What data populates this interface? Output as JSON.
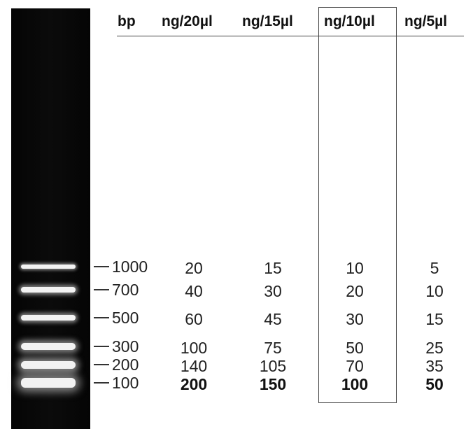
{
  "headers": {
    "bp": "bp",
    "columns": [
      "ng/20µl",
      "ng/15µl",
      "ng/10µl",
      "ng/5µl"
    ]
  },
  "rows": [
    {
      "bp": "1000",
      "values": [
        "20",
        "15",
        "10",
        "5"
      ]
    },
    {
      "bp": "700",
      "values": [
        "40",
        "30",
        "20",
        "10"
      ]
    },
    {
      "bp": "500",
      "values": [
        "60",
        "45",
        "30",
        "15"
      ]
    },
    {
      "bp": "300",
      "values": [
        "100",
        "75",
        "50",
        "25"
      ]
    },
    {
      "bp": "200",
      "values": [
        "140",
        "105",
        "70",
        "35"
      ]
    },
    {
      "bp": "100",
      "values": [
        "200",
        "150",
        "100",
        "50"
      ]
    }
  ],
  "highlighted_column": "ng/10µl",
  "bold_row": "100",
  "colors": {
    "gel_background": "#080808",
    "band": "#f2f2f2",
    "text": "#222222"
  }
}
